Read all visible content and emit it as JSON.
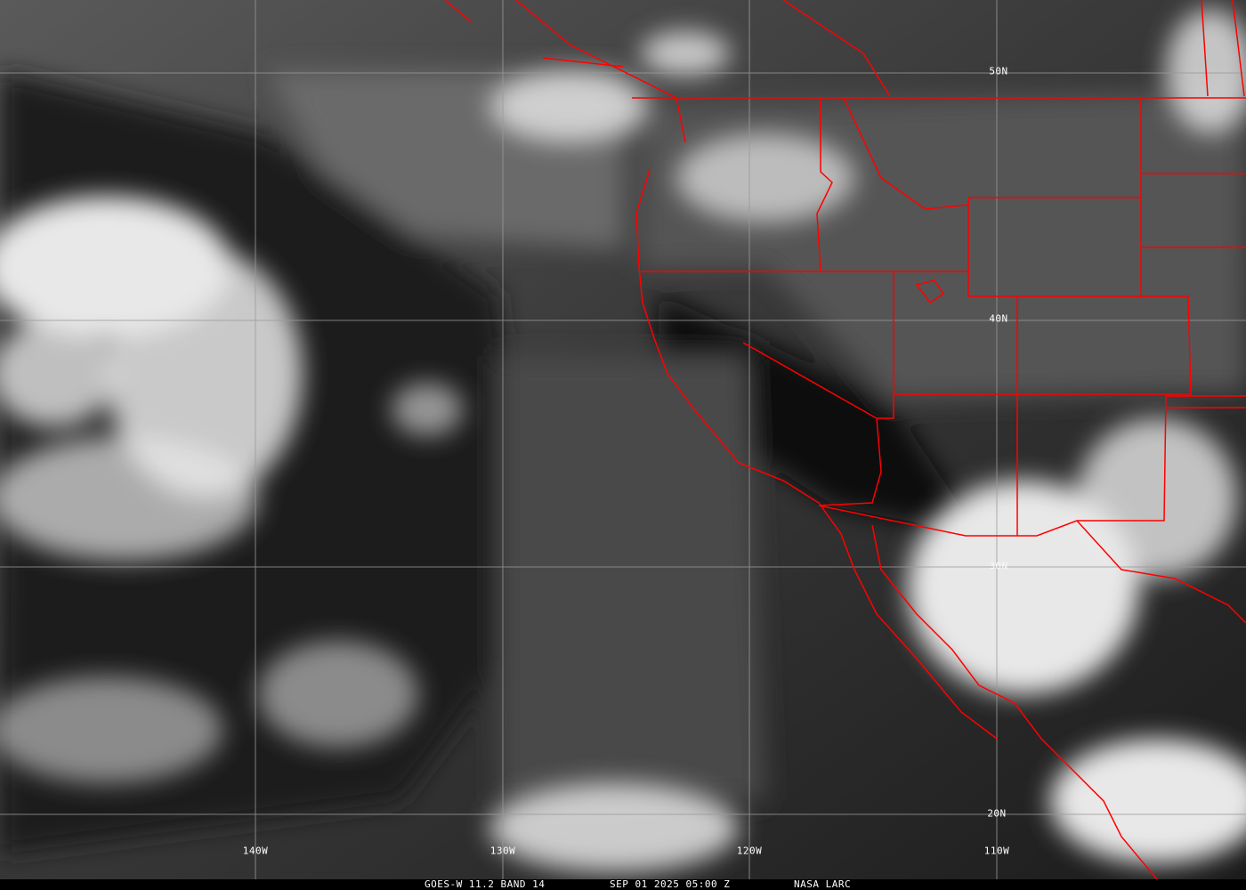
{
  "caption": {
    "product": "GOES-W 11.2 BAND 14",
    "datetime": "SEP 01 2025 05:00 Z",
    "credit": "NASA LARC"
  },
  "grid": {
    "lat_labels": [
      "50N",
      "40N",
      "30N",
      "20N"
    ],
    "lon_labels": [
      "140W",
      "130W",
      "120W",
      "110W"
    ]
  },
  "colors": {
    "boundaries": "#ff0000",
    "grid": "#9a9a9a",
    "text": "#ffffff"
  }
}
